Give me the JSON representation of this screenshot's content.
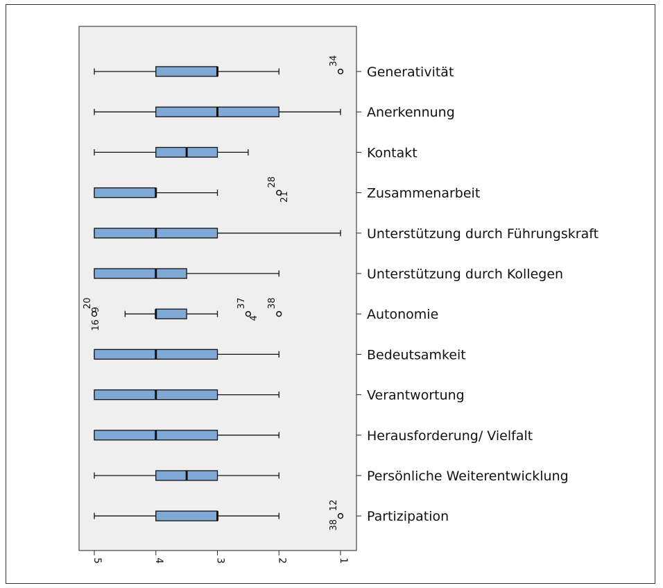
{
  "chart_data": {
    "type": "box",
    "orientation": "horizontal",
    "value_axis": {
      "min": 1,
      "max": 5,
      "reversed": true,
      "ticks": [
        5,
        4,
        3,
        2,
        1
      ],
      "tick_labels": [
        "5",
        "4",
        "3",
        "2",
        "1"
      ],
      "tick_label_rotation": "90"
    },
    "grid": false,
    "plot_background": "#efefef",
    "box_color": "#7fa8d4",
    "categories": [
      {
        "label": "Generativität",
        "min": 2,
        "q1": 3,
        "median": 3,
        "q3": 4,
        "max": 5,
        "outliers": [
          {
            "value": 1,
            "labels": [
              "34"
            ]
          }
        ]
      },
      {
        "label": "Anerkennung",
        "min": 1,
        "q1": 2,
        "median": 3,
        "q3": 4,
        "max": 5,
        "outliers": []
      },
      {
        "label": "Kontakt",
        "min": 2.5,
        "q1": 3,
        "median": 3.5,
        "q3": 4,
        "max": 5,
        "outliers": []
      },
      {
        "label": "Zusammenarbeit",
        "min": 3,
        "q1": 4,
        "median": 4,
        "q3": 5,
        "max": 5,
        "outliers": [
          {
            "value": 2,
            "labels": [
              "28",
              "21"
            ]
          }
        ]
      },
      {
        "label": "Unterstützung durch Führungskraft",
        "min": 1,
        "q1": 3,
        "median": 4,
        "q3": 5,
        "max": 5,
        "outliers": []
      },
      {
        "label": "Unterstützung durch Kollegen",
        "min": 2,
        "q1": 3.5,
        "median": 4,
        "q3": 5,
        "max": 5,
        "outliers": []
      },
      {
        "label": "Autonomie",
        "min": 3,
        "q1": 3.5,
        "median": 4,
        "q3": 4,
        "max": 4.5,
        "outliers": [
          {
            "value": 5,
            "labels": [
              "20",
              "16",
              "9"
            ]
          },
          {
            "value": 2.5,
            "labels": [
              "37",
              "4"
            ]
          },
          {
            "value": 2,
            "labels": [
              "38"
            ]
          }
        ]
      },
      {
        "label": "Bedeutsamkeit",
        "min": 2,
        "q1": 3,
        "median": 4,
        "q3": 5,
        "max": 5,
        "outliers": []
      },
      {
        "label": "Verantwortung",
        "min": 2,
        "q1": 3,
        "median": 4,
        "q3": 5,
        "max": 5,
        "outliers": []
      },
      {
        "label": "Herausforderung/ Vielfalt",
        "min": 2,
        "q1": 3,
        "median": 4,
        "q3": 5,
        "max": 5,
        "outliers": []
      },
      {
        "label": "Persönliche Weiterentwicklung",
        "min": 2,
        "q1": 3,
        "median": 3.5,
        "q3": 4,
        "max": 5,
        "outliers": []
      },
      {
        "label": "Partizipation",
        "min": 2,
        "q1": 3,
        "median": 3,
        "q3": 4,
        "max": 5,
        "outliers": [
          {
            "value": 1,
            "labels": [
              "38",
              "12"
            ]
          }
        ]
      }
    ]
  }
}
